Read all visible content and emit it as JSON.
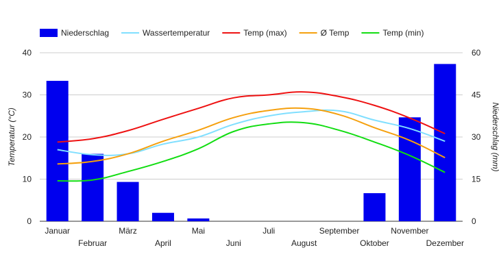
{
  "chart_data": {
    "type": "bar+line",
    "categories": [
      "Januar",
      "Februar",
      "März",
      "April",
      "Mai",
      "Juni",
      "Juli",
      "August",
      "September",
      "Oktober",
      "November",
      "Dezember"
    ],
    "y_left": {
      "label": "Temperatur (°C)",
      "range": [
        0,
        40
      ],
      "ticks": [
        0,
        10,
        20,
        30,
        40
      ]
    },
    "y_right": {
      "label": "Niederschlag (mm)",
      "range": [
        0,
        60
      ],
      "ticks": [
        0,
        15,
        30,
        45,
        60
      ]
    },
    "grid": true,
    "legend_position": "top",
    "bars": {
      "name": "Niederschlag",
      "axis": "right",
      "color": "#0000ee",
      "values": [
        50,
        24,
        14,
        3,
        1,
        0,
        0,
        0,
        0,
        10,
        37,
        56
      ]
    },
    "series": [
      {
        "name": "Wassertemperatur",
        "axis": "left",
        "color": "#80dfff",
        "values": [
          17.0,
          15.8,
          16.0,
          18.3,
          20.0,
          23.0,
          25.0,
          26.0,
          26.2,
          24.0,
          22.0,
          19.0
        ]
      },
      {
        "name": "Temp (max)",
        "axis": "left",
        "color": "#ee1111",
        "values": [
          18.8,
          19.6,
          21.5,
          24.2,
          26.8,
          29.3,
          30.0,
          30.7,
          29.6,
          27.5,
          24.5,
          20.8
        ]
      },
      {
        "name": "Ø Temp",
        "axis": "left",
        "color": "#f5a00e",
        "values": [
          13.6,
          14.2,
          16.0,
          19.0,
          21.6,
          24.6,
          26.3,
          26.8,
          25.3,
          22.2,
          19.2,
          15.1
        ]
      },
      {
        "name": "Temp (min)",
        "axis": "left",
        "color": "#11dd11",
        "values": [
          9.6,
          9.8,
          11.8,
          14.2,
          17.2,
          21.3,
          23.1,
          23.4,
          21.6,
          18.8,
          15.6,
          11.6
        ]
      }
    ]
  }
}
